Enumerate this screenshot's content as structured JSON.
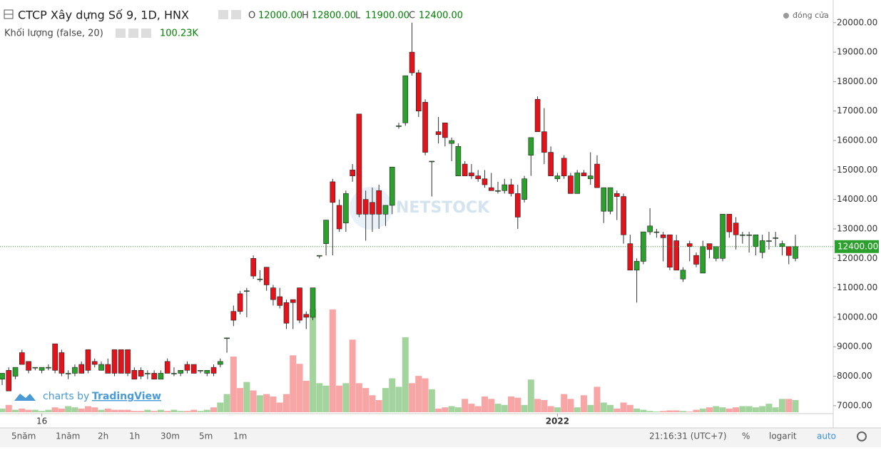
{
  "chart_data": {
    "type": "candlestick",
    "title": "CTCP Xây dựng Số 9, 1D, HNX",
    "ohlc_legend": [
      {
        "key": "O",
        "label": "12000.00"
      },
      {
        "key": "H",
        "label": "12800.00"
      },
      {
        "key": "L",
        "label": "11900.00"
      },
      {
        "key": "C",
        "label": "12400.00"
      }
    ],
    "volume_title": "Khối lượng (false, 20)",
    "volume_label": "100.23K",
    "close_legend": "đóng cửa",
    "watermark": "NETSTOCK",
    "branding": {
      "prefix": "charts by",
      "name": "TradingView"
    },
    "up_color": "#2ca02c",
    "down_color": "#e3121b",
    "up_volume_color": "#a3d49d",
    "down_volume_color": "#f7a5a5",
    "categories": [
      null,
      null,
      null,
      null,
      null,
      null,
      "16",
      null,
      null,
      null,
      null,
      null,
      null,
      null,
      null,
      null,
      null,
      null,
      null,
      null,
      null,
      null,
      null,
      null,
      null,
      null,
      null,
      null,
      null,
      null,
      null,
      null,
      null,
      null,
      null,
      null,
      null,
      null,
      null,
      null,
      null,
      null,
      null,
      null,
      null,
      null,
      null,
      null,
      null,
      null,
      null,
      null,
      null,
      null,
      null,
      null,
      null,
      null,
      null,
      null,
      null,
      null,
      null,
      null,
      null,
      null,
      null,
      null,
      null,
      null,
      null,
      null,
      null,
      null,
      null,
      null,
      null,
      null,
      null,
      null,
      null,
      null,
      null,
      null,
      "2022",
      null,
      null,
      null,
      null,
      null,
      null,
      null,
      null,
      null,
      null,
      null,
      null,
      null,
      null,
      null,
      null,
      null,
      null,
      null,
      null,
      null,
      null,
      null,
      null,
      null,
      null,
      null,
      null,
      null,
      null,
      null,
      null,
      null,
      null,
      null,
      null
    ],
    "open": [
      7900,
      8200,
      8000,
      8800,
      8500,
      8300,
      8200,
      8300,
      9100,
      8800,
      8100,
      8100,
      8400,
      8900,
      8500,
      8200,
      8400,
      8900,
      8900,
      8900,
      8200,
      8200,
      8100,
      8100,
      7900,
      8500,
      8100,
      8100,
      8400,
      8400,
      8200,
      8100,
      8300,
      8400,
      9300,
      10200,
      10800,
      10900,
      12000,
      11300,
      11700,
      11000,
      10700,
      10500,
      10600,
      11000,
      10100,
      10000,
      12100,
      12500,
      14600,
      13800,
      13200,
      15000,
      16900,
      14000,
      13900,
      14300,
      13500,
      13800,
      16500,
      16600,
      19000,
      18300,
      17300,
      15300,
      16300,
      16600,
      15900,
      14800,
      15200,
      14900,
      14800,
      14700,
      14400,
      14300,
      14300,
      14500,
      14200,
      14000,
      15500,
      17400,
      16300,
      15600,
      14700,
      15400,
      14800,
      14200,
      14900,
      14700,
      15200,
      13600,
      13600,
      14200,
      14100,
      12500,
      11600,
      11900,
      12900,
      12900,
      12800,
      12800,
      12600,
      11300,
      12500,
      12100,
      11500,
      12500,
      12000,
      12000,
      13500,
      13200,
      12800,
      12800,
      12400,
      12200,
      12600,
      12700,
      12400,
      12400,
      12000
    ],
    "high": [
      8100,
      8300,
      8300,
      8900,
      8500,
      8300,
      8300,
      8400,
      9100,
      8900,
      8200,
      8400,
      8500,
      8900,
      8600,
      8500,
      8600,
      8900,
      8900,
      8900,
      8300,
      8300,
      8200,
      8200,
      8200,
      8600,
      8300,
      8200,
      8500,
      8400,
      8200,
      8200,
      8400,
      8600,
      9300,
      10400,
      10900,
      11000,
      12100,
      11600,
      11700,
      11100,
      11000,
      10600,
      10600,
      11000,
      10200,
      11000,
      12100,
      13300,
      14700,
      14000,
      14300,
      15200,
      16900,
      14300,
      14400,
      14500,
      13800,
      15100,
      16600,
      18200,
      20000,
      18400,
      17400,
      15300,
      16800,
      16600,
      16100,
      15900,
      15300,
      15200,
      15000,
      15000,
      14900,
      14600,
      14700,
      14700,
      14500,
      14800,
      16100,
      17500,
      17100,
      15800,
      14900,
      15500,
      14900,
      15000,
      15000,
      15600,
      15500,
      14400,
      14400,
      14300,
      14200,
      12800,
      12000,
      12900,
      13700,
      13000,
      12900,
      12800,
      12800,
      11700,
      12600,
      12200,
      12600,
      12500,
      12400,
      13500,
      13500,
      13400,
      12900,
      12900,
      12800,
      12800,
      12900,
      12900,
      12600,
      12400,
      12800
    ],
    "low": [
      7700,
      7500,
      7900,
      8400,
      8100,
      8200,
      8100,
      8200,
      8100,
      8000,
      7900,
      8000,
      8100,
      8100,
      8300,
      8200,
      8100,
      8000,
      8100,
      8000,
      7900,
      7900,
      7900,
      7900,
      7900,
      8100,
      8000,
      8000,
      8100,
      8100,
      8100,
      8000,
      8000,
      8300,
      8800,
      9700,
      10100,
      10000,
      11300,
      11200,
      10900,
      10400,
      10300,
      9600,
      9600,
      9800,
      9600,
      9900,
      12000,
      12100,
      12100,
      12900,
      12900,
      14600,
      13400,
      12600,
      12900,
      13000,
      13100,
      13500,
      16400,
      16500,
      18200,
      16800,
      15500,
      14100,
      15900,
      15800,
      15300,
      14800,
      14800,
      14700,
      14600,
      14400,
      14300,
      14200,
      14200,
      14100,
      13000,
      13900,
      14800,
      16300,
      15200,
      14800,
      14600,
      14700,
      14200,
      14200,
      14800,
      14500,
      14400,
      13200,
      13500,
      13300,
      12500,
      11600,
      10500,
      11800,
      12800,
      12700,
      11900,
      11600,
      11600,
      11200,
      11900,
      11700,
      11500,
      12000,
      11900,
      11900,
      12700,
      12300,
      12500,
      12200,
      12100,
      12000,
      12300,
      12400,
      12100,
      11800,
      11900
    ],
    "close": [
      8100,
      7500,
      8300,
      8400,
      8200,
      8300,
      8300,
      8300,
      8200,
      8100,
      8100,
      8300,
      8100,
      8200,
      8400,
      8400,
      8100,
      8100,
      8100,
      8100,
      7900,
      8000,
      8100,
      7900,
      8100,
      8100,
      8100,
      8200,
      8200,
      8100,
      8200,
      8200,
      8100,
      8500,
      9300,
      9900,
      10200,
      10900,
      11400,
      11300,
      11100,
      10600,
      10400,
      9800,
      10500,
      9900,
      10000,
      11000,
      12100,
      13300,
      13900,
      13000,
      14200,
      14800,
      13500,
      13500,
      13500,
      13500,
      13800,
      15100,
      16500,
      18200,
      18300,
      17000,
      15600,
      15300,
      16200,
      16100,
      16000,
      15800,
      14800,
      14800,
      14700,
      14500,
      14300,
      14300,
      14500,
      14200,
      13400,
      14700,
      16100,
      16300,
      15600,
      14800,
      14800,
      14800,
      14200,
      14900,
      14800,
      14800,
      14400,
      14400,
      14400,
      14100,
      12800,
      11600,
      11900,
      12900,
      13100,
      12900,
      12700,
      11700,
      11600,
      11600,
      12400,
      11800,
      12400,
      12300,
      12400,
      13500,
      12900,
      12800,
      12800,
      12800,
      12800,
      12600,
      12600,
      12700,
      12500,
      12100,
      12400
    ],
    "volume": [
      30000,
      60000,
      20000,
      30000,
      20000,
      20000,
      10000,
      20000,
      40000,
      30000,
      50000,
      40000,
      30000,
      50000,
      40000,
      20000,
      30000,
      20000,
      20000,
      20000,
      10000,
      10000,
      20000,
      10000,
      20000,
      10000,
      20000,
      10000,
      10000,
      20000,
      10000,
      20000,
      40000,
      80000,
      150000,
      460000,
      200000,
      250000,
      180000,
      140000,
      150000,
      130000,
      80000,
      150000,
      470000,
      400000,
      260000,
      855000,
      240000,
      220000,
      850000,
      220000,
      240000,
      600000,
      240000,
      200000,
      140000,
      100000,
      200000,
      280000,
      210000,
      620000,
      240000,
      300000,
      280000,
      190000,
      30000,
      40000,
      50000,
      40000,
      110000,
      70000,
      50000,
      130000,
      110000,
      70000,
      60000,
      130000,
      120000,
      60000,
      270000,
      110000,
      100000,
      50000,
      40000,
      150000,
      110000,
      40000,
      140000,
      60000,
      210000,
      80000,
      60000,
      30000,
      80000,
      60000,
      30000,
      20000,
      10000,
      5000,
      10000,
      15000,
      15000,
      10000,
      5000,
      20000,
      30000,
      40000,
      50000,
      40000,
      30000,
      40000,
      50000,
      50000,
      40000,
      50000,
      70000,
      40000,
      110000,
      110000,
      100230
    ],
    "ylim": [
      6730,
      20770
    ],
    "yticks": [
      {
        "value": 7000,
        "label": "7000.00"
      },
      {
        "value": 8000,
        "label": "8000.00"
      },
      {
        "value": 9000,
        "label": "9000.00"
      },
      {
        "value": 10000,
        "label": "10000.00"
      },
      {
        "value": 11000,
        "label": "11000.00"
      },
      {
        "value": 12000,
        "label": "12000.00"
      },
      {
        "value": 13000,
        "label": "13000.00"
      },
      {
        "value": 14000,
        "label": "14000.00"
      },
      {
        "value": 15000,
        "label": "15000.00"
      },
      {
        "value": 16000,
        "label": "16000.00"
      },
      {
        "value": 17000,
        "label": "17000.00"
      },
      {
        "value": 18000,
        "label": "18000.00"
      },
      {
        "value": 19000,
        "label": "19000.00"
      },
      {
        "value": 20000,
        "label": "20000.00"
      }
    ],
    "last_price": {
      "value": 12400,
      "label": "12400.00"
    },
    "grid": false
  },
  "toolbar": {
    "ranges": [
      "5năm",
      "1năm",
      "2h",
      "1h",
      "30m",
      "5m",
      "1m"
    ],
    "clock": "21:16:31 (UTC+7)",
    "options": [
      "%",
      "logarit",
      "auto"
    ]
  }
}
